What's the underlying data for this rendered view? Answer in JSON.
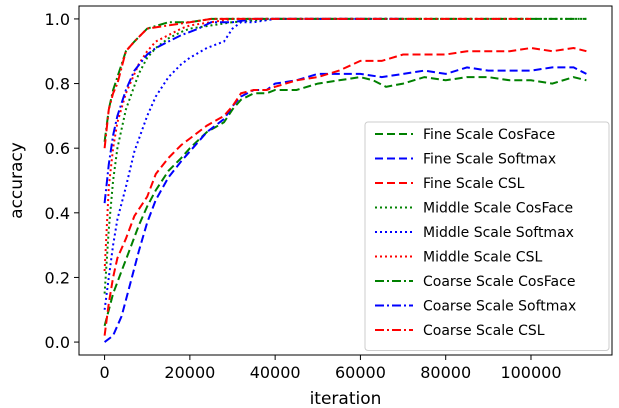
{
  "chart_data": {
    "type": "line",
    "title": "",
    "xlabel": "iteration",
    "ylabel": "accuracy",
    "xlim": [
      -6000,
      119000
    ],
    "ylim": [
      -0.04,
      1.04
    ],
    "xticks": [
      0,
      20000,
      40000,
      60000,
      80000,
      100000
    ],
    "yticks": [
      0.0,
      0.2,
      0.4,
      0.6,
      0.8,
      1.0
    ],
    "grid": false,
    "legend_position": "lower-right",
    "series": [
      {
        "name": "Fine Scale CosFace",
        "color": "#008000",
        "style": "dashed",
        "x": [
          0,
          2000,
          4000,
          6000,
          8000,
          10000,
          12000,
          15000,
          18000,
          20000,
          24000,
          28000,
          30000,
          32000,
          35000,
          38000,
          40000,
          45000,
          50000,
          55000,
          60000,
          63000,
          66000,
          70000,
          75000,
          80000,
          85000,
          90000,
          95000,
          100000,
          105000,
          110000,
          113000
        ],
        "y": [
          0.05,
          0.15,
          0.22,
          0.29,
          0.36,
          0.42,
          0.47,
          0.53,
          0.57,
          0.6,
          0.65,
          0.68,
          0.72,
          0.75,
          0.77,
          0.77,
          0.78,
          0.78,
          0.8,
          0.81,
          0.82,
          0.81,
          0.79,
          0.8,
          0.82,
          0.81,
          0.82,
          0.82,
          0.81,
          0.81,
          0.8,
          0.82,
          0.81
        ]
      },
      {
        "name": "Fine Scale Softmax",
        "color": "#0000ff",
        "style": "dashed",
        "x": [
          0,
          2000,
          4000,
          6000,
          8000,
          10000,
          12000,
          15000,
          18000,
          20000,
          24000,
          28000,
          30000,
          32000,
          35000,
          38000,
          40000,
          45000,
          50000,
          55000,
          60000,
          65000,
          70000,
          75000,
          80000,
          85000,
          90000,
          95000,
          100000,
          105000,
          110000,
          113000
        ],
        "y": [
          0.0,
          0.02,
          0.08,
          0.18,
          0.28,
          0.37,
          0.44,
          0.51,
          0.56,
          0.59,
          0.65,
          0.69,
          0.73,
          0.76,
          0.78,
          0.78,
          0.8,
          0.81,
          0.83,
          0.83,
          0.83,
          0.82,
          0.83,
          0.84,
          0.83,
          0.85,
          0.84,
          0.84,
          0.84,
          0.85,
          0.85,
          0.83
        ]
      },
      {
        "name": "Fine Scale CSL",
        "color": "#ff0000",
        "style": "dashed",
        "x": [
          0,
          1000,
          2000,
          3000,
          5000,
          7000,
          10000,
          12000,
          15000,
          18000,
          20000,
          24000,
          28000,
          30000,
          32000,
          35000,
          38000,
          40000,
          45000,
          50000,
          55000,
          60000,
          65000,
          70000,
          75000,
          80000,
          85000,
          90000,
          95000,
          100000,
          105000,
          110000,
          113000
        ],
        "y": [
          0.02,
          0.12,
          0.2,
          0.26,
          0.32,
          0.39,
          0.45,
          0.52,
          0.57,
          0.61,
          0.63,
          0.67,
          0.7,
          0.73,
          0.77,
          0.78,
          0.78,
          0.79,
          0.81,
          0.82,
          0.84,
          0.87,
          0.87,
          0.89,
          0.89,
          0.89,
          0.9,
          0.9,
          0.9,
          0.91,
          0.9,
          0.91,
          0.9
        ]
      },
      {
        "name": "Middle Scale CosFace",
        "color": "#008000",
        "style": "dotted",
        "x": [
          0,
          1000,
          2000,
          3000,
          5000,
          8000,
          10000,
          12000,
          15000,
          18000,
          20000,
          25000,
          30000,
          40000,
          50000,
          60000,
          70000,
          80000,
          90000,
          100000,
          110000,
          113000
        ],
        "y": [
          0.15,
          0.35,
          0.5,
          0.6,
          0.72,
          0.83,
          0.88,
          0.91,
          0.94,
          0.96,
          0.97,
          0.98,
          0.99,
          1.0,
          1.0,
          1.0,
          1.0,
          1.0,
          1.0,
          1.0,
          1.0,
          1.0
        ]
      },
      {
        "name": "Middle Scale Softmax",
        "color": "#0000ff",
        "style": "dotted",
        "x": [
          0,
          1000,
          2000,
          3000,
          5000,
          7000,
          10000,
          12000,
          15000,
          18000,
          20000,
          24000,
          28000,
          30000,
          32000,
          35000,
          40000,
          50000,
          60000,
          70000
        ],
        "y": [
          0.1,
          0.2,
          0.3,
          0.38,
          0.48,
          0.59,
          0.7,
          0.76,
          0.82,
          0.86,
          0.88,
          0.91,
          0.93,
          0.97,
          0.99,
          0.99,
          1.0,
          1.0,
          1.0,
          1.0
        ]
      },
      {
        "name": "Middle Scale CSL",
        "color": "#ff0000",
        "style": "dotted",
        "x": [
          0,
          1000,
          2000,
          3000,
          5000,
          8000,
          10000,
          12000,
          15000,
          18000,
          20000,
          25000,
          30000,
          40000,
          50000,
          60000
        ],
        "y": [
          0.22,
          0.48,
          0.6,
          0.68,
          0.77,
          0.86,
          0.9,
          0.93,
          0.95,
          0.97,
          0.98,
          0.99,
          1.0,
          1.0,
          1.0,
          1.0
        ]
      },
      {
        "name": "Coarse Scale CosFace",
        "color": "#008000",
        "style": "dashdot",
        "x": [
          0,
          1000,
          2000,
          3000,
          5000,
          7000,
          10000,
          15000,
          20000,
          25000,
          30000,
          40000,
          50000,
          60000,
          70000,
          80000,
          90000,
          100000,
          110000,
          113000
        ],
        "y": [
          0.62,
          0.72,
          0.78,
          0.82,
          0.9,
          0.93,
          0.97,
          0.99,
          0.99,
          1.0,
          1.0,
          1.0,
          1.0,
          1.0,
          1.0,
          1.0,
          1.0,
          1.0,
          1.0,
          1.0
        ]
      },
      {
        "name": "Coarse Scale Softmax",
        "color": "#0000ff",
        "style": "dashdot",
        "x": [
          0,
          1000,
          2000,
          3000,
          5000,
          7000,
          10000,
          12000,
          15000,
          18000,
          20000,
          22000,
          25000,
          30000,
          35000,
          40000,
          50000,
          60000,
          70000
        ],
        "y": [
          0.43,
          0.55,
          0.64,
          0.7,
          0.78,
          0.84,
          0.89,
          0.91,
          0.93,
          0.95,
          0.96,
          0.97,
          0.99,
          0.99,
          1.0,
          1.0,
          1.0,
          1.0,
          1.0
        ]
      },
      {
        "name": "Coarse Scale CSL",
        "color": "#ff0000",
        "style": "dashdot",
        "x": [
          0,
          1000,
          2000,
          3000,
          5000,
          7000,
          10000,
          15000,
          20000,
          25000,
          30000,
          40000,
          50000,
          60000,
          70000,
          80000,
          90000,
          100000
        ],
        "y": [
          0.6,
          0.72,
          0.77,
          0.8,
          0.9,
          0.93,
          0.97,
          0.98,
          0.99,
          1.0,
          1.0,
          1.0,
          1.0,
          1.0,
          1.0,
          1.0,
          1.0,
          1.0
        ]
      }
    ]
  }
}
